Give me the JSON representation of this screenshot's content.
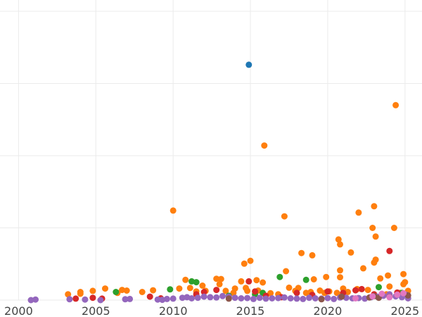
{
  "chart_data": {
    "type": "scatter",
    "title": "",
    "xlabel": "",
    "ylabel": "",
    "xlim": [
      1998.8,
      2026.1
    ],
    "ylim": [
      0,
      100
    ],
    "yticks": [
      0,
      25,
      50,
      75,
      100
    ],
    "xticks": [
      2000,
      2005,
      2010,
      2015,
      2020,
      2025
    ],
    "x_tick_labels": [
      "2000",
      "2005",
      "2010",
      "2015",
      "2020",
      "2025"
    ],
    "grid": true,
    "legend": "none",
    "series": [
      {
        "color": "#1f77b4",
        "points": [
          [
            2014.9,
            81.5
          ]
        ]
      },
      {
        "color": "#ff7f0e",
        "points": [
          [
            2003.2,
            2.0
          ],
          [
            2004.0,
            2.8
          ],
          [
            2004.0,
            2.2
          ],
          [
            2004.8,
            3.2
          ],
          [
            2005.6,
            4.0
          ],
          [
            2006.4,
            2.5
          ],
          [
            2006.7,
            3.5
          ],
          [
            2007.0,
            3.3
          ],
          [
            2008.0,
            2.8
          ],
          [
            2008.7,
            3.4
          ],
          [
            2010.0,
            31.0
          ],
          [
            2010.4,
            4.0
          ],
          [
            2010.8,
            7.0
          ],
          [
            2011.1,
            4.2
          ],
          [
            2011.5,
            3.0
          ],
          [
            2011.9,
            5.0
          ],
          [
            2012.1,
            3.2
          ],
          [
            2012.8,
            7.4
          ],
          [
            2013.0,
            5.5
          ],
          [
            2013.1,
            7.3
          ],
          [
            2013.4,
            3.2
          ],
          [
            2013.9,
            2.5
          ],
          [
            2014.0,
            4.0
          ],
          [
            2014.4,
            6.5
          ],
          [
            2014.6,
            12.6
          ],
          [
            2014.7,
            4.2
          ],
          [
            2014.8,
            3.2
          ],
          [
            2015.0,
            13.6
          ],
          [
            2015.4,
            6.9
          ],
          [
            2015.5,
            3.3
          ],
          [
            2015.9,
            53.5
          ],
          [
            2015.8,
            6.1
          ],
          [
            2016.3,
            2.4
          ],
          [
            2016.8,
            2.0
          ],
          [
            2017.2,
            29.0
          ],
          [
            2017.3,
            10.0
          ],
          [
            2017.5,
            4.3
          ],
          [
            2017.9,
            3.2
          ],
          [
            2018.1,
            4.2
          ],
          [
            2018.3,
            16.3
          ],
          [
            2018.6,
            2.5
          ],
          [
            2018.9,
            2.8
          ],
          [
            2019.0,
            15.5
          ],
          [
            2019.1,
            7.2
          ],
          [
            2019.5,
            3.3
          ],
          [
            2019.8,
            2.5
          ],
          [
            2019.9,
            8.0
          ],
          [
            2020.1,
            3.0
          ],
          [
            2020.6,
            2.5
          ],
          [
            2020.7,
            21.0
          ],
          [
            2020.8,
            19.3
          ],
          [
            2020.8,
            10.3
          ],
          [
            2020.8,
            7.9
          ],
          [
            2021.0,
            4.0
          ],
          [
            2021.3,
            2.8
          ],
          [
            2021.5,
            16.5
          ],
          [
            2021.9,
            3.8
          ],
          [
            2022.0,
            30.3
          ],
          [
            2022.3,
            11.0
          ],
          [
            2022.6,
            3.5
          ],
          [
            2022.9,
            25.0
          ],
          [
            2023.0,
            13.0
          ],
          [
            2023.0,
            32.5
          ],
          [
            2023.1,
            22.0
          ],
          [
            2023.1,
            14.0
          ],
          [
            2023.4,
            7.5
          ],
          [
            2023.8,
            2.0
          ],
          [
            2023.9,
            8.5
          ],
          [
            2024.0,
            4.7
          ],
          [
            2024.3,
            25.0
          ],
          [
            2024.4,
            67.5
          ],
          [
            2024.7,
            2.5
          ],
          [
            2024.9,
            9.0
          ],
          [
            2024.9,
            5.5
          ],
          [
            2025.0,
            6.2
          ],
          [
            2025.2,
            3.2
          ]
        ]
      },
      {
        "color": "#2ca02c",
        "points": [
          [
            2006.3,
            2.8
          ],
          [
            2009.8,
            3.7
          ],
          [
            2011.2,
            6.5
          ],
          [
            2011.5,
            6.2
          ],
          [
            2013.6,
            1.5
          ],
          [
            2015.3,
            2.0
          ],
          [
            2015.8,
            2.5
          ],
          [
            2016.9,
            8.0
          ],
          [
            2018.6,
            7.0
          ],
          [
            2023.3,
            4.5
          ],
          [
            2024.8,
            2.5
          ]
        ]
      },
      {
        "color": "#d62728",
        "points": [
          [
            2003.7,
            0.5
          ],
          [
            2004.8,
            0.8
          ],
          [
            2005.4,
            0.5
          ],
          [
            2008.5,
            1.2
          ],
          [
            2009.2,
            0.6
          ],
          [
            2011.5,
            2.0
          ],
          [
            2012.0,
            2.8
          ],
          [
            2012.8,
            3.5
          ],
          [
            2014.9,
            6.5
          ],
          [
            2015.3,
            3.0
          ],
          [
            2016.0,
            1.5
          ],
          [
            2017.0,
            1.0
          ],
          [
            2018.0,
            2.5
          ],
          [
            2019.0,
            1.8
          ],
          [
            2020.0,
            3.0
          ],
          [
            2021.0,
            2.5
          ],
          [
            2021.8,
            3.4
          ],
          [
            2022.2,
            3.8
          ],
          [
            2023.0,
            2.0
          ],
          [
            2024.0,
            17.0
          ],
          [
            2024.5,
            2.6
          ]
        ]
      },
      {
        "color": "#9467bd",
        "points": [
          [
            2000.8,
            0.0
          ],
          [
            2001.1,
            0.2
          ],
          [
            2003.3,
            0.3
          ],
          [
            2004.3,
            0.2
          ],
          [
            2005.3,
            0.0
          ],
          [
            2006.9,
            0.3
          ],
          [
            2007.2,
            0.4
          ],
          [
            2009.0,
            0.2
          ],
          [
            2009.3,
            0.1
          ],
          [
            2009.6,
            0.4
          ],
          [
            2010.0,
            0.5
          ],
          [
            2010.6,
            0.8
          ],
          [
            2010.9,
            1.0
          ],
          [
            2011.2,
            0.6
          ],
          [
            2011.6,
            0.8
          ],
          [
            2012.0,
            1.2
          ],
          [
            2012.4,
            1.0
          ],
          [
            2012.8,
            0.9
          ],
          [
            2013.2,
            1.4
          ],
          [
            2013.6,
            1.2
          ],
          [
            2014.0,
            0.8
          ],
          [
            2014.4,
            0.6
          ],
          [
            2014.8,
            0.7
          ],
          [
            2015.2,
            0.4
          ],
          [
            2015.6,
            0.8
          ],
          [
            2016.0,
            0.5
          ],
          [
            2016.4,
            0.6
          ],
          [
            2016.8,
            0.7
          ],
          [
            2017.2,
            0.9
          ],
          [
            2017.6,
            0.6
          ],
          [
            2018.0,
            0.5
          ],
          [
            2018.4,
            0.4
          ],
          [
            2018.8,
            0.8
          ],
          [
            2019.2,
            0.6
          ],
          [
            2019.6,
            0.5
          ],
          [
            2020.0,
            0.7
          ],
          [
            2020.4,
            0.4
          ],
          [
            2020.8,
            0.9
          ],
          [
            2021.2,
            0.8
          ],
          [
            2021.6,
            0.6
          ],
          [
            2022.0,
            0.7
          ],
          [
            2022.4,
            0.5
          ],
          [
            2022.8,
            1.0
          ],
          [
            2023.2,
            1.2
          ],
          [
            2023.6,
            1.5
          ],
          [
            2024.0,
            2.0
          ],
          [
            2024.4,
            1.3
          ],
          [
            2024.8,
            1.0
          ],
          [
            2025.1,
            1.8
          ],
          [
            2025.2,
            0.6
          ]
        ]
      },
      {
        "color": "#8c564b",
        "points": [
          [
            2013.6,
            0.5
          ],
          [
            2019.6,
            0.3
          ],
          [
            2020.9,
            1.2
          ],
          [
            2022.7,
            0.9
          ],
          [
            2023.0,
            1.4
          ],
          [
            2023.3,
            0.8
          ],
          [
            2024.0,
            1.1
          ],
          [
            2025.2,
            1.6
          ]
        ]
      },
      {
        "color": "#e377c2",
        "points": [
          [
            2021.8,
            0.6
          ],
          [
            2022.9,
            1.3
          ],
          [
            2023.5,
            2.2
          ],
          [
            2024.0,
            1.0
          ],
          [
            2024.5,
            1.9
          ],
          [
            2024.9,
            2.4
          ]
        ]
      }
    ]
  }
}
